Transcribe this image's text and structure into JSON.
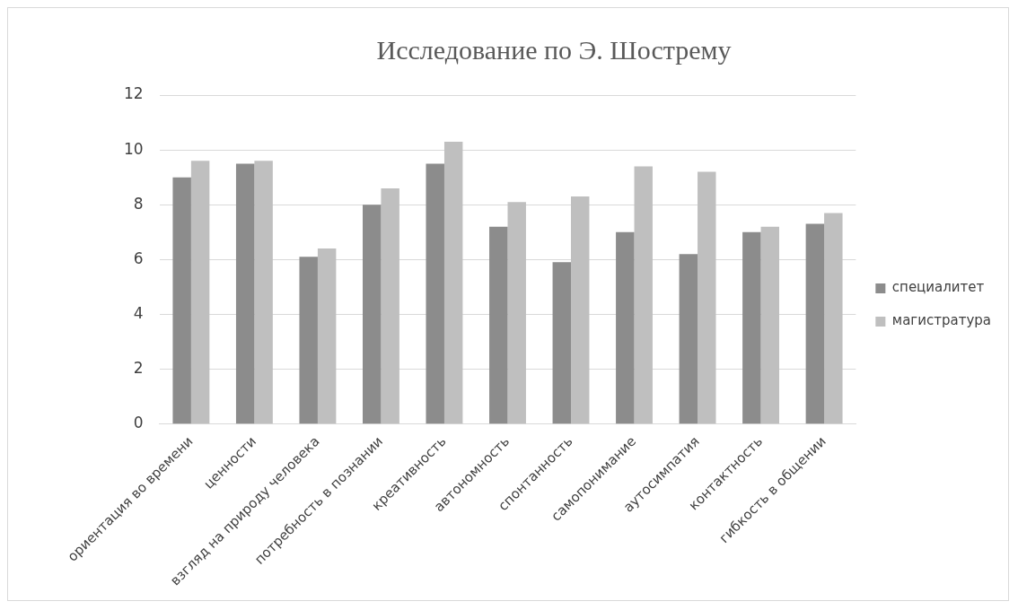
{
  "chart_data": {
    "type": "bar",
    "title": "Исследование по Э. Шострему",
    "categories": [
      "ориентация во времени",
      "ценности",
      "взгляд на природу человека",
      "потребность в познании",
      "креативность",
      "автономность",
      "спонтанность",
      "самопонимание",
      "аутосимпатия",
      "контактность",
      "гибкость в общении"
    ],
    "series": [
      {
        "name": "специалитет",
        "color": "#8c8c8c",
        "values": [
          9.0,
          9.5,
          6.1,
          8.0,
          9.5,
          7.2,
          5.9,
          7.0,
          6.2,
          7.0,
          7.3
        ]
      },
      {
        "name": "магистратура",
        "color": "#bfbfbf",
        "values": [
          9.6,
          9.6,
          6.4,
          8.6,
          10.3,
          8.1,
          8.3,
          9.4,
          9.2,
          7.2,
          7.7
        ]
      }
    ],
    "ylim": [
      0,
      12
    ],
    "yticks": [
      0,
      2,
      4,
      6,
      8,
      10,
      12
    ],
    "grid": "y",
    "legend": "right"
  }
}
